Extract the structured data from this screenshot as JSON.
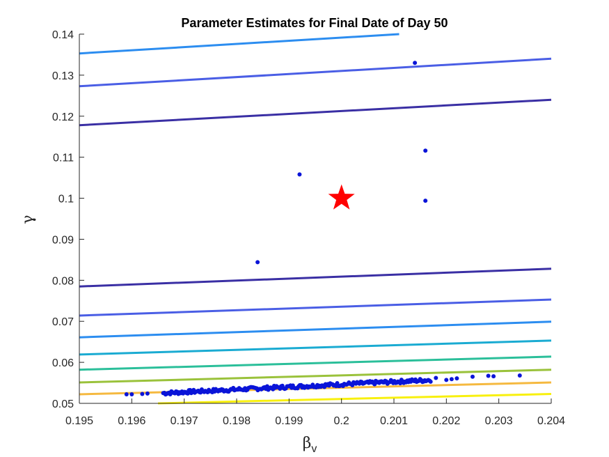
{
  "chart_data": {
    "type": "scatter",
    "title": "Parameter Estimates for Final Date of Day 50",
    "xlabel": "β",
    "xlabel_sub": "v",
    "ylabel": "γ",
    "xlim": [
      0.195,
      0.204
    ],
    "ylim": [
      0.05,
      0.14
    ],
    "xticks": [
      0.195,
      0.196,
      0.197,
      0.198,
      0.199,
      0.2,
      0.201,
      0.202,
      0.203,
      0.204
    ],
    "xtick_labels": [
      "0.195",
      "0.196",
      "0.197",
      "0.198",
      "0.199",
      "0.2",
      "0.201",
      "0.202",
      "0.203",
      "0.204"
    ],
    "yticks": [
      0.05,
      0.06,
      0.07,
      0.08,
      0.09,
      0.1,
      0.11,
      0.12,
      0.13,
      0.14
    ],
    "ytick_labels": [
      "0.05",
      "0.06",
      "0.07",
      "0.08",
      "0.09",
      "0.1",
      "0.11",
      "0.12",
      "0.13",
      "0.14"
    ],
    "grid": false,
    "contours": [
      {
        "color": "#f8f00e",
        "points": [
          [
            0.1965,
            0.05
          ],
          [
            0.204,
            0.0523
          ]
        ]
      },
      {
        "color": "#f5b940",
        "points": [
          [
            0.195,
            0.0522
          ],
          [
            0.204,
            0.0551
          ]
        ]
      },
      {
        "color": "#9ac23b",
        "points": [
          [
            0.195,
            0.0551
          ],
          [
            0.204,
            0.0582
          ]
        ]
      },
      {
        "color": "#2bbf9a",
        "points": [
          [
            0.195,
            0.0582
          ],
          [
            0.204,
            0.0614
          ]
        ]
      },
      {
        "color": "#1aabd2",
        "points": [
          [
            0.195,
            0.0619
          ],
          [
            0.204,
            0.0653
          ]
        ]
      },
      {
        "color": "#2c8df0",
        "points": [
          [
            0.195,
            0.0661
          ],
          [
            0.204,
            0.0699
          ]
        ]
      },
      {
        "color": "#4a5ee5",
        "points": [
          [
            0.195,
            0.0714
          ],
          [
            0.204,
            0.0753
          ]
        ]
      },
      {
        "color": "#3a2fa4",
        "points": [
          [
            0.195,
            0.0785
          ],
          [
            0.204,
            0.0828
          ]
        ]
      },
      {
        "color": "#3a2fa4",
        "points": [
          [
            0.195,
            0.1178
          ],
          [
            0.204,
            0.124
          ]
        ]
      },
      {
        "color": "#4a5ee5",
        "points": [
          [
            0.195,
            0.1273
          ],
          [
            0.204,
            0.134
          ]
        ]
      },
      {
        "color": "#2c8df0",
        "points": [
          [
            0.195,
            0.1353
          ],
          [
            0.2011,
            0.14
          ]
        ]
      }
    ],
    "scatter": {
      "color": "#0a14d8",
      "points": [
        [
          0.2014,
          0.133
        ],
        [
          0.2016,
          0.1116
        ],
        [
          0.1992,
          0.1058
        ],
        [
          0.2016,
          0.0994
        ],
        [
          0.1984,
          0.0844
        ],
        [
          0.1959,
          0.0522
        ],
        [
          0.196,
          0.0522
        ],
        [
          0.1962,
          0.0523
        ],
        [
          0.1963,
          0.0524
        ],
        [
          0.2025,
          0.0565
        ],
        [
          0.2029,
          0.0566
        ],
        [
          0.2034,
          0.0568
        ],
        [
          0.2028,
          0.0567
        ],
        [
          0.2021,
          0.0559
        ],
        [
          0.2018,
          0.0562
        ],
        [
          0.2022,
          0.0561
        ],
        [
          0.202,
          0.0557
        ]
      ],
      "band": {
        "x_start": 0.1966,
        "x_end": 0.2017,
        "y_start": 0.0525,
        "y_end": 0.0557,
        "count": 230
      }
    },
    "true_value": {
      "x": 0.2,
      "y": 0.1,
      "color": "#ff0000",
      "marker": "star"
    }
  }
}
